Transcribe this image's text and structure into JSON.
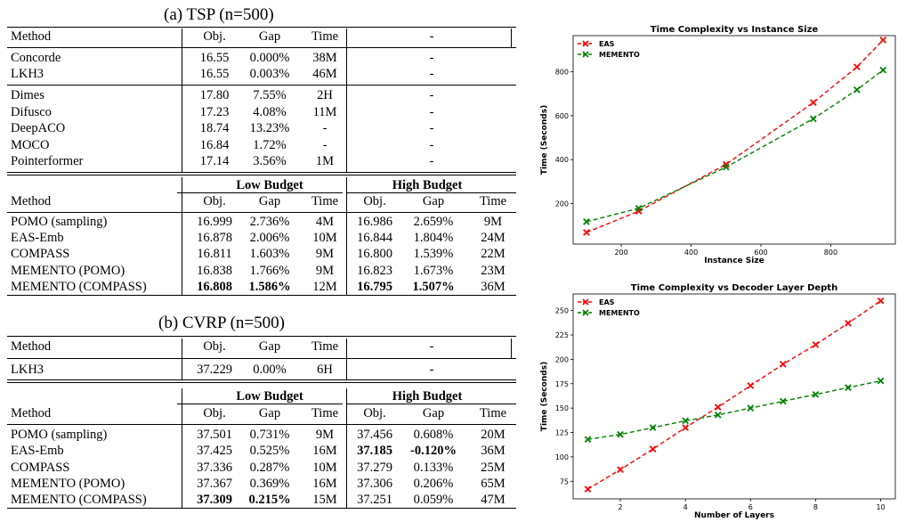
{
  "tsp": {
    "title": "(a) TSP (n=500)",
    "header": [
      "Method",
      "Obj.",
      "Gap",
      "Time",
      "-"
    ],
    "group1": [
      {
        "method": "Concorde",
        "obj": "16.55",
        "gap": "0.000%",
        "time": "38M",
        "dash": "-"
      },
      {
        "method": "LKH3",
        "obj": "16.55",
        "gap": "0.003%",
        "time": "46M",
        "dash": "-"
      }
    ],
    "group2": [
      {
        "method": "Dimes",
        "obj": "17.80",
        "gap": "7.55%",
        "time": "2H",
        "dash": "-"
      },
      {
        "method": "Difusco",
        "obj": "17.23",
        "gap": "4.08%",
        "time": "11M",
        "dash": "-"
      },
      {
        "method": "DeepACO",
        "obj": "18.74",
        "gap": "13.23%",
        "time": "-",
        "dash": "-"
      },
      {
        "method": "MOCO",
        "obj": "16.84",
        "gap": "1.72%",
        "time": "-",
        "dash": "-"
      },
      {
        "method": "Pointerformer",
        "obj": "17.14",
        "gap": "3.56%",
        "time": "1M",
        "dash": "-"
      }
    ],
    "budget_header": {
      "low": "Low Budget",
      "high": "High Budget"
    },
    "sub_header": [
      "Method",
      "Obj.",
      "Gap",
      "Time",
      "Obj.",
      "Gap",
      "Time"
    ],
    "group3": [
      {
        "method": "POMO (sampling)",
        "lo": [
          "16.999",
          "2.736%",
          "4M"
        ],
        "hi": [
          "16.986",
          "2.659%",
          "9M"
        ]
      },
      {
        "method": "EAS-Emb",
        "lo": [
          "16.878",
          "2.006%",
          "10M"
        ],
        "hi": [
          "16.844",
          "1.804%",
          "24M"
        ]
      },
      {
        "method": "COMPASS",
        "lo": [
          "16.811",
          "1.603%",
          "9M"
        ],
        "hi": [
          "16.800",
          "1.539%",
          "22M"
        ]
      },
      {
        "method": "MEMENTO (POMO)",
        "lo": [
          "16.838",
          "1.766%",
          "9M"
        ],
        "hi": [
          "16.823",
          "1.673%",
          "23M"
        ]
      },
      {
        "method": "MEMENTO (COMPASS)",
        "lo": [
          "16.808",
          "1.586%",
          "12M"
        ],
        "hi": [
          "16.795",
          "1.507%",
          "36M"
        ]
      }
    ]
  },
  "cvrp": {
    "title": "(b) CVRP (n=500)",
    "header": [
      "Method",
      "Obj.",
      "Gap",
      "Time",
      "-"
    ],
    "group1": [
      {
        "method": "LKH3",
        "obj": "37.229",
        "gap": "0.00%",
        "time": "6H",
        "dash": "-"
      }
    ],
    "budget_header": {
      "low": "Low Budget",
      "high": "High Budget"
    },
    "sub_header": [
      "Method",
      "Obj.",
      "Gap",
      "Time",
      "Obj.",
      "Gap",
      "Time"
    ],
    "group2": [
      {
        "method": "POMO (sampling)",
        "lo": [
          "37.501",
          "0.731%",
          "9M"
        ],
        "hi": [
          "37.456",
          "0.608%",
          "20M"
        ]
      },
      {
        "method": "EAS-Emb",
        "lo": [
          "37.425",
          "0.525%",
          "16M"
        ],
        "hi": [
          "37.185",
          "-0.120%",
          "36M"
        ]
      },
      {
        "method": "COMPASS",
        "lo": [
          "37.336",
          "0.287%",
          "10M"
        ],
        "hi": [
          "37.279",
          "0.133%",
          "25M"
        ]
      },
      {
        "method": "MEMENTO (POMO)",
        "lo": [
          "37.367",
          "0.369%",
          "16M"
        ],
        "hi": [
          "37.306",
          "0.206%",
          "65M"
        ]
      },
      {
        "method": "MEMENTO (COMPASS)",
        "lo": [
          "37.309",
          "0.215%",
          "15M"
        ],
        "hi": [
          "37.251",
          "0.059%",
          "47M"
        ]
      }
    ]
  },
  "chart_data": [
    {
      "type": "line",
      "title": "Time Complexity vs Instance Size",
      "xlabel": "Instance Size",
      "ylabel": "Time (Seconds)",
      "xlim": [
        62,
        985
      ],
      "ylim": [
        15,
        965
      ],
      "xticks": [
        200,
        400,
        600,
        800
      ],
      "yticks": [
        200,
        400,
        600,
        800
      ],
      "legend": "top-left",
      "grid": false,
      "series": [
        {
          "name": "EAS",
          "color": "#ff0000",
          "x": [
            100,
            250,
            500,
            750,
            875,
            950
          ],
          "y": [
            68,
            165,
            378,
            660,
            822,
            945
          ]
        },
        {
          "name": "MEMENTO",
          "color": "#008000",
          "x": [
            100,
            250,
            500,
            750,
            875,
            950
          ],
          "y": [
            117,
            178,
            366,
            586,
            718,
            808
          ]
        }
      ]
    },
    {
      "type": "line",
      "title": "Time Complexity vs Decoder Layer Depth",
      "xlabel": "Number of Layers",
      "ylabel": "Time (Seconds)",
      "xlim": [
        0.55,
        10.45
      ],
      "ylim": [
        57,
        267
      ],
      "xticks": [
        2,
        4,
        6,
        8,
        10
      ],
      "yticks": [
        75,
        100,
        125,
        150,
        175,
        200,
        225,
        250
      ],
      "legend": "top-left",
      "grid": false,
      "series": [
        {
          "name": "EAS",
          "color": "#ff0000",
          "x": [
            1,
            2,
            3,
            4,
            5,
            6,
            7,
            8,
            9,
            10
          ],
          "y": [
            67,
            87,
            108,
            130,
            151,
            173,
            195,
            215,
            237,
            260
          ]
        },
        {
          "name": "MEMENTO",
          "color": "#008000",
          "x": [
            1,
            2,
            3,
            4,
            5,
            6,
            7,
            8,
            9,
            10
          ],
          "y": [
            118,
            123,
            130,
            137,
            143,
            150,
            157,
            164,
            171,
            178
          ]
        }
      ]
    }
  ]
}
